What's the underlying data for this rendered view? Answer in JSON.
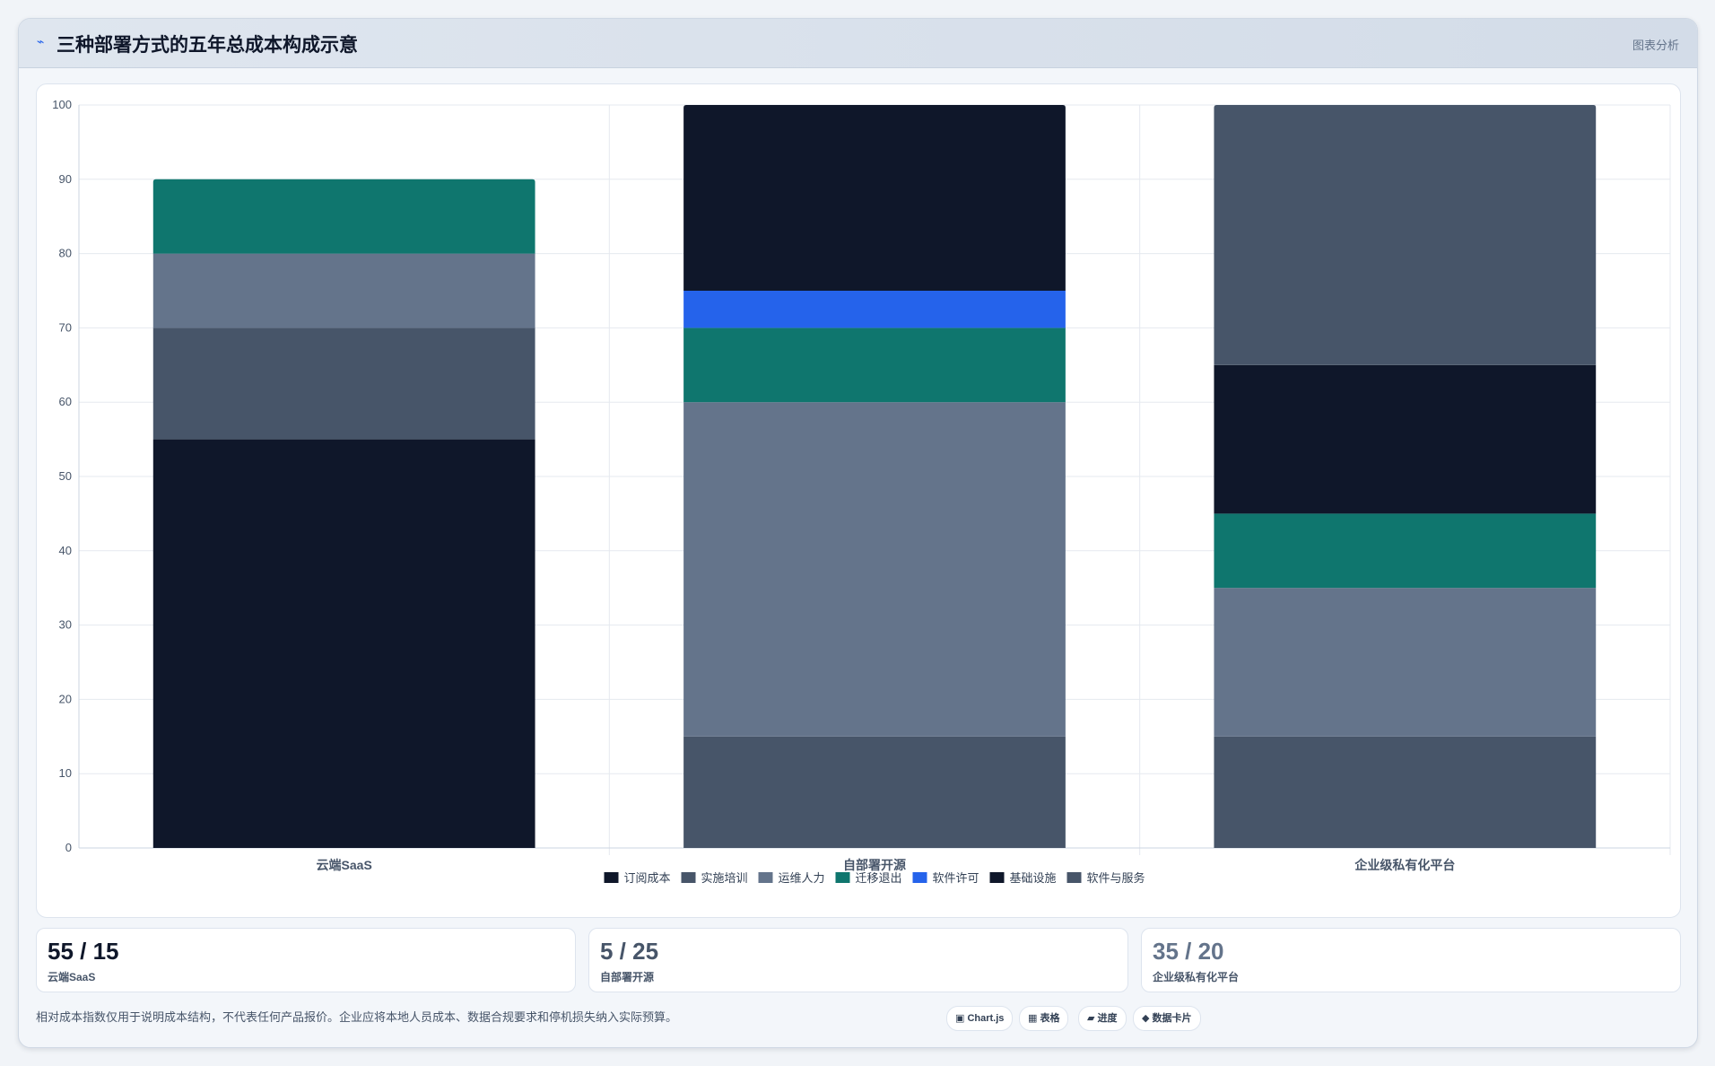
{
  "header": {
    "icon": "chart-icon",
    "title": "三种部署方式的五年总成本构成示意",
    "right_label": "图表分析"
  },
  "chart_data": {
    "type": "bar",
    "stacked": true,
    "categories": [
      "云端SaaS",
      "自部署开源",
      "企业级私有化平台"
    ],
    "ylim": [
      0,
      100
    ],
    "yticks": [
      0,
      10,
      20,
      30,
      40,
      50,
      60,
      70,
      80,
      90,
      100
    ],
    "grid": true,
    "legend_position": "bottom",
    "series": [
      {
        "name": "订阅成本",
        "color": "#0f172a",
        "values": [
          55,
          0,
          0
        ]
      },
      {
        "name": "实施培训",
        "color": "#475569",
        "values": [
          15,
          15,
          15
        ]
      },
      {
        "name": "运维人力",
        "color": "#64748b",
        "values": [
          10,
          45,
          20
        ]
      },
      {
        "name": "迁移退出",
        "color": "#0f766e",
        "values": [
          10,
          10,
          10
        ]
      },
      {
        "name": "软件许可",
        "color": "#2563eb",
        "values": [
          0,
          5,
          0
        ]
      },
      {
        "name": "基础设施",
        "color": "#0f172a",
        "values": [
          0,
          25,
          20
        ]
      },
      {
        "name": "软件与服务",
        "color": "#475569",
        "values": [
          0,
          0,
          35
        ]
      }
    ]
  },
  "stats": [
    {
      "value": "55 / 15",
      "label": "云端SaaS",
      "color": "#0f172a"
    },
    {
      "value": "5 / 25",
      "label": "自部署开源",
      "color": "#475569"
    },
    {
      "value": "35 / 20",
      "label": "企业级私有化平台",
      "color": "#64748b"
    }
  ],
  "footnote": "相对成本指数仅用于说明成本结构，不代表任何产品报价。企业应将本地人员成本、数据合规要求和停机损失纳入实际预算。",
  "pills": [
    "▣ Chart.js",
    "▦ 表格",
    "▰ 进度",
    "◆ 数据卡片"
  ]
}
